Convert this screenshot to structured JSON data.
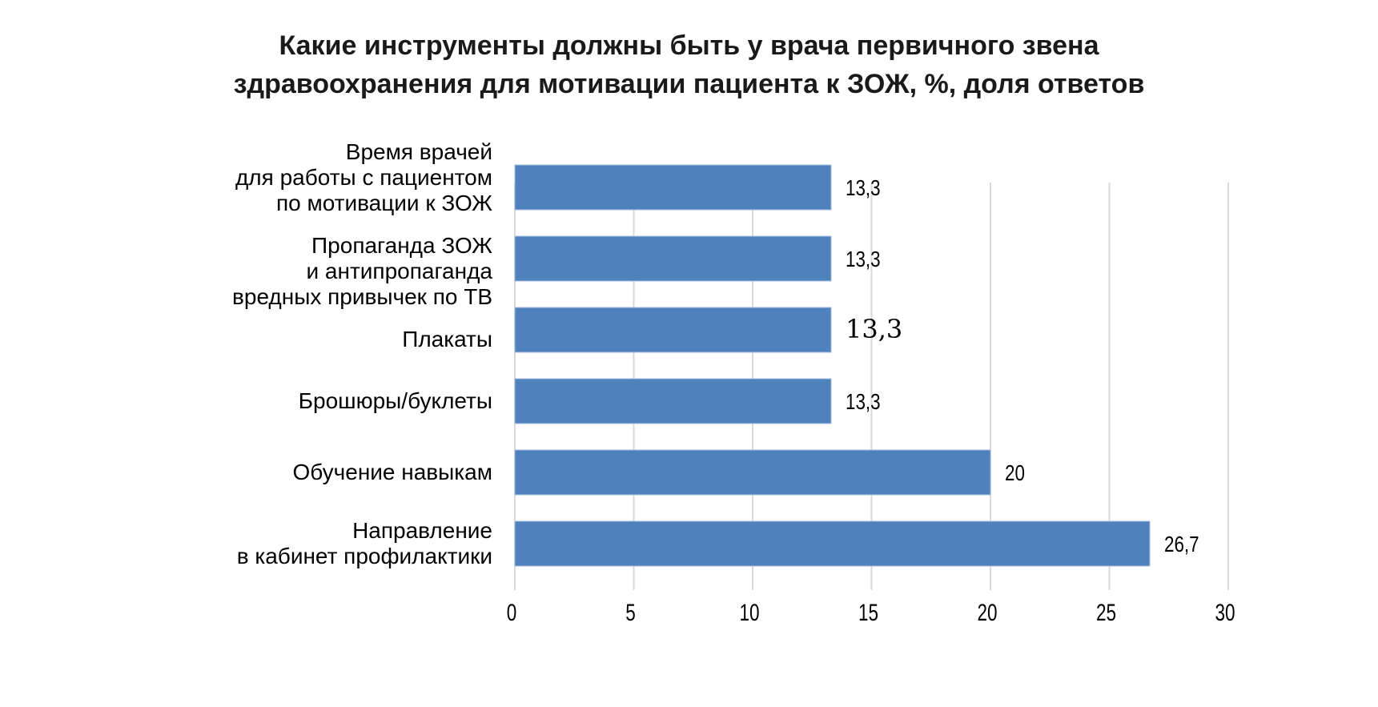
{
  "chart_data": {
    "type": "bar",
    "orientation": "horizontal",
    "title_lines": [
      "Какие инструменты должны быть у врача первичного звена",
      "здравоохранения для мотивации пациента к ЗОЖ, %, доля ответов"
    ],
    "categories": [
      [
        "Время врачей",
        "для работы с пациентом",
        "по мотивации к ЗОЖ"
      ],
      [
        "Пропаганда ЗОЖ",
        "и антипропаганда",
        "вредных привычек по ТВ"
      ],
      [
        "Плакаты"
      ],
      [
        "Брошюры/буклеты"
      ],
      [
        "Обучение навыкам"
      ],
      [
        "Направление",
        "в кабинет профилактики"
      ]
    ],
    "values": [
      13.3,
      13.3,
      13.3,
      13.3,
      20,
      26.7
    ],
    "value_labels": [
      "13,3",
      "13,3",
      "13,3",
      "13,3",
      "20",
      "26,7"
    ],
    "xlim": [
      0,
      30
    ],
    "xticks": [
      0,
      5,
      10,
      15,
      20,
      25,
      30
    ],
    "grid": true,
    "bar_color": "#4f81bd",
    "grid_color": "#d9d9d9"
  }
}
